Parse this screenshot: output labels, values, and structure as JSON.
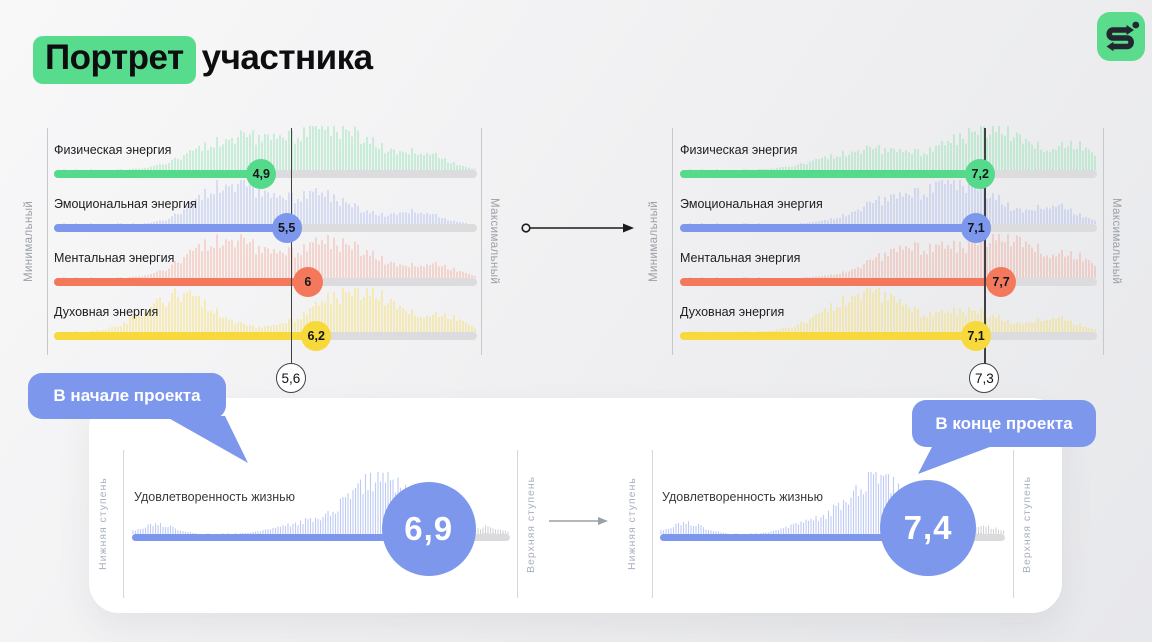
{
  "header": {
    "title_highlight": "Портрет",
    "title_rest": "участника"
  },
  "axes": {
    "top_min": "Минимальный",
    "top_max": "Максимальный",
    "bottom_min": "Нижняя ступень",
    "bottom_max": "Верхняя ступень"
  },
  "bubbles": {
    "start": "В начале проекта",
    "end": "В конце проекта"
  },
  "charts": {
    "start": {
      "mean_label": "5,6",
      "mean": 5.6,
      "metrics": [
        {
          "label": "Физическая энергия",
          "value_label": "4,9",
          "value": 4.9,
          "color": "#55d98a"
        },
        {
          "label": "Эмоциональная энергия",
          "value_label": "5,5",
          "value": 5.5,
          "color": "#7c97ec"
        },
        {
          "label": "Ментальная энергия",
          "value_label": "6",
          "value": 6.0,
          "color": "#f4795c"
        },
        {
          "label": "Духовная энергия",
          "value_label": "6,2",
          "value": 6.2,
          "color": "#f8d93b"
        }
      ]
    },
    "end": {
      "mean_label": "7,3",
      "mean": 7.3,
      "metrics": [
        {
          "label": "Физическая энергия",
          "value_label": "7,2",
          "value": 7.2,
          "color": "#55d98a"
        },
        {
          "label": "Эмоциональная энергия",
          "value_label": "7,1",
          "value": 7.1,
          "color": "#7c97ec"
        },
        {
          "label": "Ментальная энергия",
          "value_label": "7,7",
          "value": 7.7,
          "color": "#f4795c"
        },
        {
          "label": "Духовная энергия",
          "value_label": "7,1",
          "value": 7.1,
          "color": "#f8d93b"
        }
      ]
    }
  },
  "satisfaction": {
    "start": {
      "label": "Удовлетворенность жизнью",
      "value_label": "6,9",
      "value": 6.9
    },
    "end": {
      "label": "Удовлетворенность жизнью",
      "value_label": "7,4",
      "value": 7.4
    }
  },
  "colors": {
    "accent_green": "#57db8d",
    "accent_blue": "#7c97ec",
    "accent_salmon": "#f4795c",
    "accent_yellow": "#f8d93b",
    "track_gray": "#dcdcde",
    "logo_green": "#5bdc8c",
    "mean_line": "#3f4043"
  },
  "chart_data": [
    {
      "type": "bar",
      "title": "В начале проекта",
      "categories": [
        "Физическая энергия",
        "Эмоциональная энергия",
        "Ментальная энергия",
        "Духовная энергия"
      ],
      "values": [
        4.9,
        5.5,
        6.0,
        6.2
      ],
      "mean": 5.6,
      "xlim": [
        0,
        10
      ],
      "axis_labels": [
        "Минимальный",
        "Максимальный"
      ],
      "note": "horizontal slider bars with distribution (density) strips behind each bar"
    },
    {
      "type": "bar",
      "title": "В конце проекта",
      "categories": [
        "Физическая энергия",
        "Эмоциональная энергия",
        "Ментальная энергия",
        "Духовная энергия"
      ],
      "values": [
        7.2,
        7.1,
        7.7,
        7.1
      ],
      "mean": 7.3,
      "xlim": [
        0,
        10
      ],
      "axis_labels": [
        "Минимальный",
        "Максимальный"
      ],
      "note": "horizontal slider bars with distribution (density) strips behind each bar"
    },
    {
      "type": "bar",
      "title": "Удовлетворенность жизнью",
      "categories": [
        "В начале проекта",
        "В конце проекта"
      ],
      "values": [
        6.9,
        7.4
      ],
      "axis_labels": [
        "Нижняя ступень",
        "Верхняя ступень"
      ]
    }
  ]
}
